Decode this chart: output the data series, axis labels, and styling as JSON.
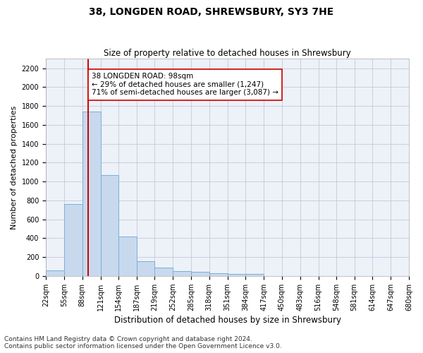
{
  "title1": "38, LONGDEN ROAD, SHREWSBURY, SY3 7HE",
  "title2": "Size of property relative to detached houses in Shrewsbury",
  "xlabel": "Distribution of detached houses by size in Shrewsbury",
  "ylabel": "Number of detached properties",
  "bin_edges": [
    22,
    55,
    88,
    121,
    154,
    187,
    219,
    252,
    285,
    318,
    351,
    384,
    417,
    450,
    483,
    516,
    548,
    581,
    614,
    647,
    680
  ],
  "bar_heights": [
    55,
    760,
    1740,
    1070,
    420,
    155,
    85,
    50,
    40,
    30,
    20,
    20,
    0,
    0,
    0,
    0,
    0,
    0,
    0,
    0
  ],
  "bar_facecolor": "#c8d9ee",
  "bar_edgecolor": "#7aafd4",
  "bar_linewidth": 0.7,
  "grid_color": "#b8c4d4",
  "background_color": "#edf1f8",
  "vline_x": 98,
  "vline_color": "#cc0000",
  "vline_linewidth": 1.4,
  "annotation_text": "38 LONGDEN ROAD: 98sqm\n← 29% of detached houses are smaller (1,247)\n71% of semi-detached houses are larger (3,087) →",
  "annotation_box_edgecolor": "#cc0000",
  "annotation_box_facecolor": "white",
  "ylim": [
    0,
    2300
  ],
  "yticks": [
    0,
    200,
    400,
    600,
    800,
    1000,
    1200,
    1400,
    1600,
    1800,
    2000,
    2200
  ],
  "footnote1": "Contains HM Land Registry data © Crown copyright and database right 2024.",
  "footnote2": "Contains public sector information licensed under the Open Government Licence v3.0.",
  "title1_fontsize": 10,
  "title2_fontsize": 8.5,
  "xlabel_fontsize": 8.5,
  "ylabel_fontsize": 8,
  "tick_fontsize": 7,
  "annotation_fontsize": 7.5,
  "footnote_fontsize": 6.5
}
